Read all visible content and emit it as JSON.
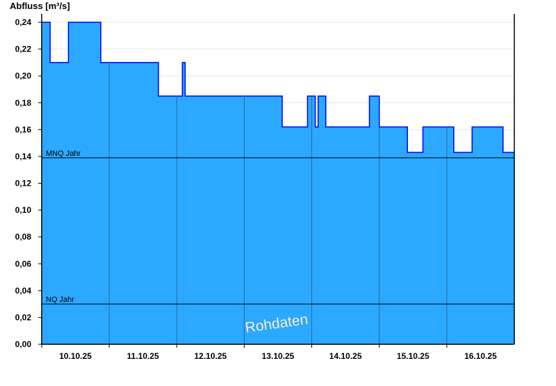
{
  "chart_data": {
    "type": "area",
    "title": "",
    "ylabel": "Abfluss [m³/s]",
    "xlabel": "",
    "ylim": [
      0,
      0.24
    ],
    "xlim": [
      "2025-10-10 00:00",
      "2025-10-17 00:00"
    ],
    "yticks": [
      "0,00",
      "0,02",
      "0,04",
      "0,06",
      "0,08",
      "0,10",
      "0,12",
      "0,14",
      "0,16",
      "0,18",
      "0,20",
      "0,22",
      "0,24"
    ],
    "xticks": [
      "10.10.25",
      "11.10.25",
      "12.10.25",
      "13.10.25",
      "14.10.25",
      "15.10.25",
      "16.10.25"
    ],
    "grid": true,
    "fill_color": "#2ba8ff",
    "line_color": "#0000ff",
    "series": [
      {
        "step": true,
        "x": [
          "2025-10-10 00:00",
          "2025-10-10 03:00",
          "2025-10-10 09:30",
          "2025-10-10 21:00",
          "2025-10-11 17:30",
          "2025-10-12 02:00",
          "2025-10-12 03:00",
          "2025-10-13 13:30",
          "2025-10-13 22:30",
          "2025-10-14 01:15",
          "2025-10-14 02:15",
          "2025-10-14 05:00",
          "2025-10-14 20:30",
          "2025-10-15 00:00",
          "2025-10-15 10:00",
          "2025-10-15 15:30",
          "2025-10-16 02:30",
          "2025-10-16 09:00",
          "2025-10-16 20:00"
        ],
        "y": [
          0.24,
          0.21,
          0.24,
          0.21,
          0.185,
          0.21,
          0.185,
          0.162,
          0.185,
          0.162,
          0.185,
          0.162,
          0.185,
          0.162,
          0.143,
          0.162,
          0.143,
          0.162,
          0.143
        ]
      }
    ],
    "reference_lines": [
      {
        "label": "MNQ Jahr",
        "value": 0.139
      },
      {
        "label": "NQ Jahr",
        "value": 0.03
      }
    ],
    "watermark": "Rohdaten"
  }
}
